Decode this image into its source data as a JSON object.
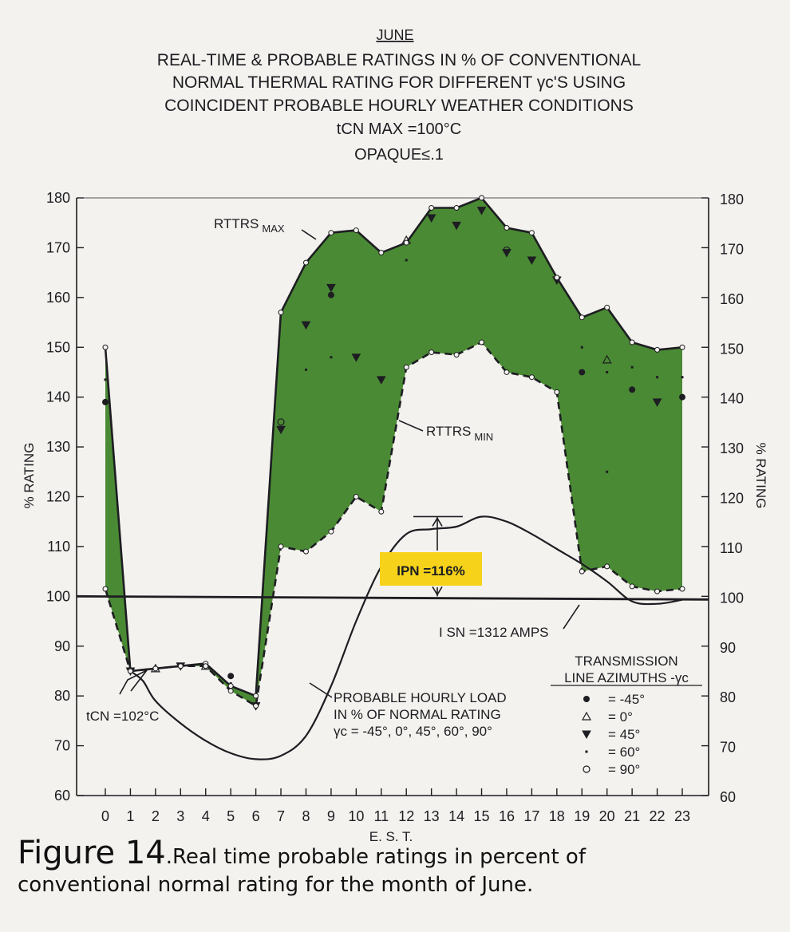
{
  "chart_data": {
    "type": "area",
    "title": "JUNE",
    "subtitle_lines": [
      "REAL-TIME & PROBABLE RATINGS IN % OF CONVENTIONAL",
      "NORMAL THERMAL RATING FOR DIFFERENT γc'S USING",
      "COINCIDENT PROBABLE HOURLY WEATHER CONDITIONS",
      "tCN MAX =100°C",
      "OPAQUE≤.1"
    ],
    "xlabel": "E. S. T.",
    "ylabel": "% RATING",
    "ylabel_right": "% RATING",
    "xlim": [
      0,
      23
    ],
    "ylim": [
      60,
      180
    ],
    "x_ticks": [
      0,
      1,
      2,
      3,
      4,
      5,
      6,
      7,
      8,
      9,
      10,
      11,
      12,
      13,
      14,
      15,
      16,
      17,
      18,
      19,
      20,
      21,
      22,
      23
    ],
    "y_ticks": [
      60,
      70,
      80,
      90,
      100,
      110,
      120,
      130,
      140,
      150,
      160,
      170,
      180
    ],
    "series": [
      {
        "name": "RTTRS MAX",
        "x": [
          0,
          1,
          2,
          3,
          4,
          5,
          6,
          7,
          8,
          9,
          10,
          11,
          12,
          13,
          14,
          15,
          16,
          17,
          18,
          19,
          20,
          21,
          22,
          23
        ],
        "values": [
          150,
          85,
          85.5,
          86,
          86.5,
          82,
          80,
          157,
          167,
          173,
          173.5,
          169,
          171,
          178,
          178,
          180,
          174,
          173,
          164,
          156,
          158,
          151,
          149.5,
          150
        ]
      },
      {
        "name": "RTTRS MIN",
        "x": [
          0,
          1,
          2,
          3,
          4,
          5,
          6,
          7,
          8,
          9,
          10,
          11,
          12,
          13,
          14,
          15,
          16,
          17,
          18,
          19,
          20,
          21,
          22,
          23
        ],
        "values": [
          101.5,
          85,
          85.5,
          86,
          86,
          81,
          78,
          110,
          109,
          113,
          120,
          117,
          146,
          149,
          148.5,
          151,
          145,
          144,
          141,
          105,
          106,
          102,
          101,
          101.5
        ]
      },
      {
        "name": "PROBABLE HOURLY LOAD IN % OF NORMAL RATING",
        "x": [
          1,
          1.5,
          2,
          3,
          4,
          5,
          6,
          7,
          8,
          9,
          10,
          11,
          12,
          13,
          14,
          15,
          16,
          17,
          18,
          19,
          20,
          21,
          22,
          23
        ],
        "values": [
          85,
          83,
          79,
          74.5,
          71,
          68.5,
          67.3,
          68,
          72,
          82,
          95,
          106,
          112.5,
          113.5,
          114,
          116,
          115,
          112.5,
          109.5,
          106.5,
          103,
          99,
          98.5,
          99.3
        ]
      }
    ],
    "reference_line": {
      "value": 100,
      "label": "I SN =1312 AMPS"
    },
    "markers": [
      {
        "x": 0,
        "y": 139,
        "type": "-45"
      },
      {
        "x": 0,
        "y": 143.5,
        "type": "60"
      },
      {
        "x": 1,
        "y": 85,
        "type": "45"
      },
      {
        "x": 2,
        "y": 85.5,
        "type": "0"
      },
      {
        "x": 3,
        "y": 86,
        "type": "45"
      },
      {
        "x": 4,
        "y": 86,
        "type": "0"
      },
      {
        "x": 5,
        "y": 84,
        "type": "-45"
      },
      {
        "x": 5,
        "y": 82.5,
        "type": "60"
      },
      {
        "x": 6,
        "y": 78,
        "type": "45"
      },
      {
        "x": 7,
        "y": 135,
        "type": "90"
      },
      {
        "x": 7,
        "y": 133.5,
        "type": "45"
      },
      {
        "x": 8,
        "y": 154.5,
        "type": "45"
      },
      {
        "x": 8,
        "y": 145.5,
        "type": "60"
      },
      {
        "x": 9,
        "y": 162,
        "type": "45"
      },
      {
        "x": 9,
        "y": 160.5,
        "type": "-45"
      },
      {
        "x": 9,
        "y": 148,
        "type": "60"
      },
      {
        "x": 10,
        "y": 148,
        "type": "45"
      },
      {
        "x": 11,
        "y": 143.5,
        "type": "45"
      },
      {
        "x": 12,
        "y": 171.5,
        "type": "0"
      },
      {
        "x": 12,
        "y": 167.5,
        "type": "60"
      },
      {
        "x": 13,
        "y": 176,
        "type": "45"
      },
      {
        "x": 14,
        "y": 174.5,
        "type": "45"
      },
      {
        "x": 15,
        "y": 177.5,
        "type": "45"
      },
      {
        "x": 16,
        "y": 169.5,
        "type": "90"
      },
      {
        "x": 16,
        "y": 169,
        "type": "45"
      },
      {
        "x": 17,
        "y": 167.5,
        "type": "45"
      },
      {
        "x": 18,
        "y": 163.5,
        "type": "45"
      },
      {
        "x": 19,
        "y": 150,
        "type": "60"
      },
      {
        "x": 19,
        "y": 145,
        "type": "-45"
      },
      {
        "x": 20,
        "y": 147.5,
        "type": "0"
      },
      {
        "x": 20,
        "y": 145,
        "type": "60"
      },
      {
        "x": 20,
        "y": 125,
        "type": "60"
      },
      {
        "x": 21,
        "y": 146,
        "type": "60"
      },
      {
        "x": 21,
        "y": 141.5,
        "type": "-45"
      },
      {
        "x": 22,
        "y": 144,
        "type": "60"
      },
      {
        "x": 22,
        "y": 139,
        "type": "45"
      },
      {
        "x": 23,
        "y": 144,
        "type": "60"
      },
      {
        "x": 23,
        "y": 140,
        "type": "-45"
      }
    ],
    "annotations": {
      "rttrs_max": "RTTRS MAX",
      "rttrs_min": "RTTRS MIN",
      "tcn": "tCN =102°C",
      "ipn": "IPN =116%",
      "load_lines": [
        "PROBABLE HOURLY LOAD",
        "IN % OF NORMAL RATING",
        "γc = -45°, 0°, 45°, 60°, 90°"
      ]
    },
    "legend": {
      "title_lines": [
        "TRANSMISSION",
        "LINE AZIMUTHS -γc"
      ],
      "placement": "bottom-right",
      "entries": [
        {
          "symbol": "filled-circle",
          "label": "= -45°"
        },
        {
          "symbol": "triangle-up",
          "label": "= 0°"
        },
        {
          "symbol": "triangle-down",
          "label": "= 45°"
        },
        {
          "symbol": "dot",
          "label": "= 60°"
        },
        {
          "symbol": "open-circle",
          "label": "= 90°"
        }
      ]
    },
    "colors": {
      "band_fill": "#4a8a34",
      "highlight": "#f6d21b",
      "ink": "#1d1d22"
    },
    "grid": false
  },
  "caption": {
    "head": "Figure 14",
    "body": ".Real time probable ratings in percent of",
    "line2": "conventional normal rating for the month of June."
  }
}
